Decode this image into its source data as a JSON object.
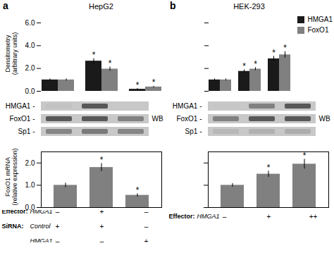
{
  "chart_data": [
    {
      "type": "bar",
      "panel_label": "a",
      "title": "HepG2",
      "y_label": "Densitometry\n(arbitrary units)",
      "categories": [
        null,
        null,
        null
      ],
      "series": [
        {
          "name": "HMGA1",
          "color": "#1a1a1a",
          "values": [
            1.0,
            2.65,
            0.18
          ],
          "errors": [
            0.09,
            0.22,
            0.06
          ],
          "annotations": [
            null,
            "*",
            "*"
          ]
        },
        {
          "name": "FoxO1",
          "color": "#808080",
          "values": [
            1.0,
            1.95,
            0.38
          ],
          "errors": [
            0.09,
            0.18,
            0.07
          ],
          "annotations": [
            null,
            "*",
            "*"
          ]
        }
      ],
      "ylim": [
        0,
        6
      ],
      "yticks": [
        0,
        2,
        4,
        6
      ],
      "tick_labels": "y"
    },
    {
      "type": "heatmap",
      "categories": [
        null,
        null,
        null
      ],
      "rows": [
        "HMGA1 -",
        "FoxO1 -",
        "Sp1 -"
      ],
      "cells": [
        [
          0.3,
          0.82,
          0.0
        ],
        [
          0.82,
          0.82,
          0.62
        ],
        [
          0.6,
          0.65,
          0.6
        ]
      ],
      "annotation": "WB"
    },
    {
      "type": "bar",
      "y_label": "FoxO1 mRNA\n(relative expression)",
      "categories": [
        null,
        null,
        null
      ],
      "values": [
        1.0,
        1.8,
        0.55
      ],
      "errors": [
        0.1,
        0.18,
        0.07
      ],
      "annotations": [
        null,
        "*",
        "*"
      ],
      "color": "#808080",
      "ylim": [
        0,
        2.5
      ],
      "yticks": [
        0,
        1,
        2
      ],
      "tick_labels": "y",
      "conditions": [
        {
          "label": "Effector:",
          "name": "HMGA1",
          "values": [
            "–",
            "+",
            "–"
          ]
        },
        {
          "label": "SiRNA:",
          "name": "Control",
          "values": [
            "+",
            "+",
            "–"
          ]
        },
        {
          "name": "HMGA1",
          "values": [
            "–",
            "–",
            "+"
          ]
        }
      ]
    },
    {
      "type": "bar",
      "panel_label": "b",
      "title": "HEK-293",
      "categories": [
        null,
        null,
        null
      ],
      "series": [
        {
          "name": "HMGA1",
          "color": "#1a1a1a",
          "values": [
            1.0,
            1.75,
            2.85
          ],
          "errors": [
            0.09,
            0.13,
            0.22
          ],
          "annotations": [
            null,
            "*",
            "*"
          ]
        },
        {
          "name": "FoxO1",
          "color": "#808080",
          "values": [
            1.0,
            1.95,
            3.2
          ],
          "errors": [
            0.09,
            0.13,
            0.28
          ],
          "annotations": [
            null,
            "*",
            "*"
          ]
        }
      ],
      "ylim": [
        0,
        6
      ],
      "yticks": [
        0,
        2,
        4,
        6
      ],
      "tick_labels": false,
      "legend": "upper right"
    },
    {
      "type": "heatmap",
      "categories": [
        null,
        null,
        null
      ],
      "rows": [
        "HMGA1 -",
        "FoxO1 -",
        "Sp1 -"
      ],
      "cells": [
        [
          0.28,
          0.62,
          0.82
        ],
        [
          0.62,
          0.82,
          0.82
        ],
        [
          0.35,
          0.38,
          0.4
        ]
      ],
      "annotation": "WB"
    },
    {
      "type": "bar",
      "categories": [
        null,
        null,
        null
      ],
      "values": [
        1.0,
        1.5,
        1.95
      ],
      "errors": [
        0.08,
        0.14,
        0.22
      ],
      "annotations": [
        null,
        "*",
        "*"
      ],
      "color": "#808080",
      "ylim": [
        0,
        2.5
      ],
      "yticks": [
        0,
        1,
        2
      ],
      "tick_labels": false,
      "conditions": [
        {
          "label": "Effector:",
          "name": "HMGA1",
          "values": [
            "–",
            "+",
            "++"
          ]
        }
      ]
    }
  ]
}
